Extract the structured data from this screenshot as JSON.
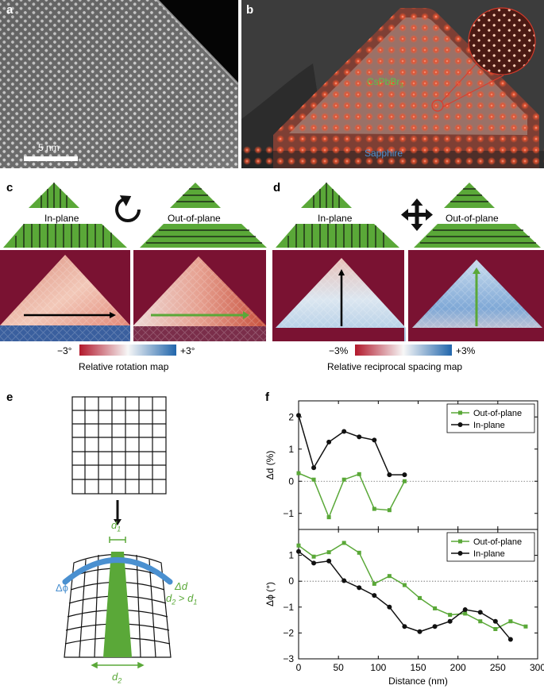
{
  "panels": {
    "a": {
      "label": "a",
      "scalebar": "5 nm"
    },
    "b": {
      "label": "b",
      "material_top": "CsPbBr",
      "material_top_sub": "3",
      "material_bottom": "Sapphire"
    },
    "c": {
      "label": "c",
      "left_title": "In-plane",
      "right_title": "Out-of-plane",
      "cb_min": "−3°",
      "cb_max": "+3°",
      "cb_label": "Relative rotation map"
    },
    "d": {
      "label": "d",
      "left_title": "In-plane",
      "right_title": "Out-of-plane",
      "cb_min": "−3%",
      "cb_max": "+3%",
      "cb_label": "Relative reciprocal spacing map"
    },
    "e": {
      "label": "e",
      "d1": "d",
      "d1_sub": "1",
      "d2": "d",
      "d2_sub": "2",
      "dphi": "Δϕ",
      "dd": "Δd",
      "ineq_a": "d",
      "ineq_a_sub": "2",
      "ineq_mid": " > ",
      "ineq_b": "d",
      "ineq_b_sub": "1"
    },
    "f": {
      "label": "f"
    }
  },
  "colors": {
    "green": "#5aa838",
    "black": "#111111",
    "blue_strain": "#4a90d0",
    "map_bg": "#7a1232"
  },
  "chart_data": [
    {
      "type": "line",
      "ylabel": "Δd (%)",
      "xlim": [
        0,
        300
      ],
      "ylim": [
        -1.5,
        2.5
      ],
      "yticks": [
        -1,
        0,
        1,
        2
      ],
      "legend": "top-right",
      "series": [
        {
          "name": "Out-of-plane",
          "color": "#5aa838",
          "marker": "square",
          "x": [
            0,
            19,
            38,
            57,
            76,
            95,
            114,
            133
          ],
          "y": [
            0.25,
            0.05,
            -1.12,
            0.05,
            0.22,
            -0.86,
            -0.9,
            0.0
          ]
        },
        {
          "name": "In-plane",
          "color": "#111111",
          "marker": "circle",
          "x": [
            0,
            19,
            38,
            57,
            76,
            95,
            114,
            133
          ],
          "y": [
            2.05,
            0.42,
            1.22,
            1.55,
            1.38,
            1.28,
            0.2,
            0.2
          ]
        }
      ]
    },
    {
      "type": "line",
      "ylabel": "Δϕ (°)",
      "xlabel": "Distance (nm)",
      "xlim": [
        0,
        300
      ],
      "ylim": [
        -3,
        2
      ],
      "xticks": [
        0,
        50,
        100,
        150,
        200,
        250,
        300
      ],
      "yticks": [
        -3,
        -2,
        -1,
        0,
        1
      ],
      "legend": "top-right",
      "series": [
        {
          "name": "Out-of-plane",
          "color": "#5aa838",
          "marker": "square",
          "x": [
            0,
            19,
            38,
            57,
            76,
            95,
            114,
            133,
            152,
            171,
            190,
            209,
            228,
            247,
            266,
            285
          ],
          "y": [
            1.38,
            0.95,
            1.12,
            1.48,
            1.1,
            -0.1,
            0.2,
            -0.15,
            -0.65,
            -1.05,
            -1.3,
            -1.25,
            -1.55,
            -1.85,
            -1.55,
            -1.75
          ]
        },
        {
          "name": "In-plane",
          "color": "#111111",
          "marker": "circle",
          "x": [
            0,
            19,
            38,
            57,
            76,
            95,
            114,
            133,
            152,
            171,
            190,
            209,
            228,
            247,
            266
          ],
          "y": [
            1.15,
            0.7,
            0.78,
            0.02,
            -0.25,
            -0.55,
            -1.0,
            -1.75,
            -1.95,
            -1.75,
            -1.55,
            -1.1,
            -1.2,
            -1.55,
            -2.25
          ]
        }
      ]
    }
  ]
}
